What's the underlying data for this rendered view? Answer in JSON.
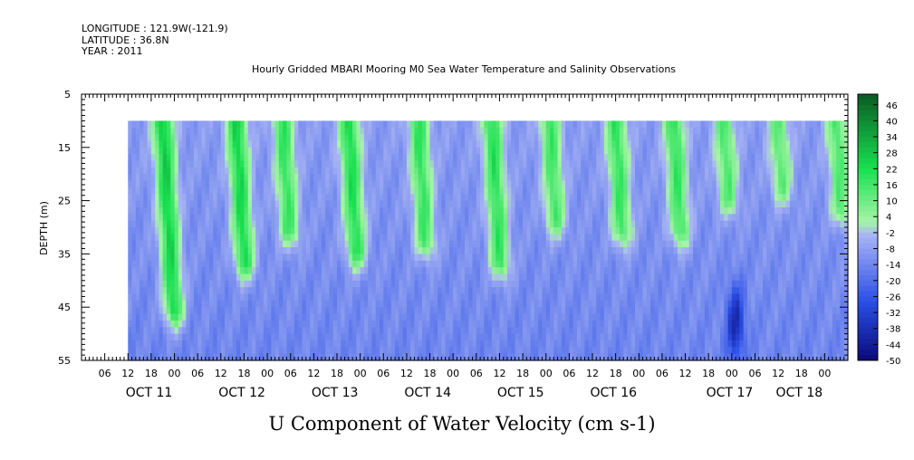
{
  "header": {
    "longitude": "LONGITUDE : 121.9W(-121.9)",
    "latitude": "LATITUDE : 36.8N",
    "year": "YEAR : 2011",
    "title": "Hourly Gridded MBARI Mooring M0 Sea Water Temperature and Salinity Observations"
  },
  "chart_data": {
    "type": "heatmap",
    "title": "Hourly Gridded MBARI Mooring M0 Sea Water Temperature and Salinity Observations",
    "xlabel": "U Component of Water Velocity (cm s-1)",
    "ylabel": "DEPTH (m)",
    "y_axis": {
      "ylim": [
        5,
        55
      ],
      "inverted": true,
      "ticks": [
        5,
        15,
        25,
        35,
        45,
        55
      ]
    },
    "x_axis": {
      "start": "2011-10-10T00:00",
      "end": "2011-10-18T06:00",
      "hour_ticks": [
        {
          "t": "2011-10-10T06:00",
          "label": "06"
        },
        {
          "t": "2011-10-10T12:00",
          "label": "12"
        },
        {
          "t": "2011-10-10T18:00",
          "label": "18"
        },
        {
          "t": "2011-10-11T00:00",
          "label": "00"
        },
        {
          "t": "2011-10-11T06:00",
          "label": "06"
        },
        {
          "t": "2011-10-11T12:00",
          "label": "12"
        },
        {
          "t": "2011-10-11T18:00",
          "label": "18"
        },
        {
          "t": "2011-10-12T00:00",
          "label": "00"
        },
        {
          "t": "2011-10-12T06:00",
          "label": "06"
        },
        {
          "t": "2011-10-12T12:00",
          "label": "12"
        },
        {
          "t": "2011-10-12T18:00",
          "label": "18"
        },
        {
          "t": "2011-10-13T00:00",
          "label": "00"
        },
        {
          "t": "2011-10-13T06:00",
          "label": "06"
        },
        {
          "t": "2011-10-13T12:00",
          "label": "12"
        },
        {
          "t": "2011-10-13T18:00",
          "label": "18"
        },
        {
          "t": "2011-10-14T00:00",
          "label": "00"
        },
        {
          "t": "2011-10-14T06:00",
          "label": "06"
        },
        {
          "t": "2011-10-14T12:00",
          "label": "12"
        },
        {
          "t": "2011-10-14T18:00",
          "label": "18"
        },
        {
          "t": "2011-10-15T00:00",
          "label": "00"
        },
        {
          "t": "2011-10-15T06:00",
          "label": "06"
        },
        {
          "t": "2011-10-15T12:00",
          "label": "12"
        },
        {
          "t": "2011-10-15T18:00",
          "label": "18"
        },
        {
          "t": "2011-10-16T00:00",
          "label": "00"
        },
        {
          "t": "2011-10-16T06:00",
          "label": "06"
        },
        {
          "t": "2011-10-16T12:00",
          "label": "12"
        },
        {
          "t": "2011-10-16T18:00",
          "label": "18"
        },
        {
          "t": "2011-10-17T00:00",
          "label": "00"
        },
        {
          "t": "2011-10-17T06:00",
          "label": "06"
        },
        {
          "t": "2011-10-17T12:00",
          "label": "12"
        },
        {
          "t": "2011-10-17T18:00",
          "label": "18"
        },
        {
          "t": "2011-10-18T00:00",
          "label": "00"
        }
      ],
      "date_labels": [
        {
          "t": "2011-10-11T00:00",
          "label": "OCT 11"
        },
        {
          "t": "2011-10-12T00:00",
          "label": "OCT 12"
        },
        {
          "t": "2011-10-13T00:00",
          "label": "OCT 13"
        },
        {
          "t": "2011-10-14T00:00",
          "label": "OCT 14"
        },
        {
          "t": "2011-10-15T00:00",
          "label": "OCT 15"
        },
        {
          "t": "2011-10-16T00:00",
          "label": "OCT 16"
        },
        {
          "t": "2011-10-17T06:00",
          "label": "OCT 17"
        },
        {
          "t": "2011-10-18T00:00",
          "label": "OCT 18"
        }
      ]
    },
    "data_extent": {
      "start": "2011-10-10T12:00",
      "end": "2011-10-18T06:00",
      "depth_top": 10,
      "depth_bottom": 55
    },
    "colorbar": {
      "labels": [
        46,
        40,
        34,
        28,
        22,
        16,
        10,
        4,
        -2,
        -8,
        -14,
        -20,
        -26,
        -32,
        -38,
        -44,
        -50
      ],
      "range": [
        -50,
        50
      ],
      "colors": {
        "dark_blue": "#0a0a7a",
        "mid_blue": "#2a4ee6",
        "light_blue": "#a8b4f4",
        "light_green": "#a6f4a6",
        "green": "#18e050",
        "dark_green": "#0a5a22"
      }
    },
    "positive_bands": [
      {
        "t": "2011-10-10T21:00",
        "top_value": 22,
        "depth_extent": 45
      },
      {
        "t": "2011-10-11T16:00",
        "top_value": 20,
        "depth_extent": 36
      },
      {
        "t": "2011-10-12T04:00",
        "top_value": 14,
        "depth_extent": 30
      },
      {
        "t": "2011-10-12T21:00",
        "top_value": 18,
        "depth_extent": 34
      },
      {
        "t": "2011-10-13T15:00",
        "top_value": 14,
        "depth_extent": 32
      },
      {
        "t": "2011-10-14T10:00",
        "top_value": 16,
        "depth_extent": 36
      },
      {
        "t": "2011-10-15T01:00",
        "top_value": 12,
        "depth_extent": 28
      },
      {
        "t": "2011-10-15T18:00",
        "top_value": 14,
        "depth_extent": 30
      },
      {
        "t": "2011-10-16T09:00",
        "top_value": 14,
        "depth_extent": 30
      },
      {
        "t": "2011-10-16T22:00",
        "top_value": 10,
        "depth_extent": 24
      },
      {
        "t": "2011-10-17T12:00",
        "top_value": 8,
        "depth_extent": 22
      },
      {
        "t": "2011-10-18T03:00",
        "top_value": 10,
        "depth_extent": 26
      }
    ],
    "negative_core": {
      "t": "2011-10-17T01:00",
      "depth": 48,
      "value": -38
    }
  }
}
